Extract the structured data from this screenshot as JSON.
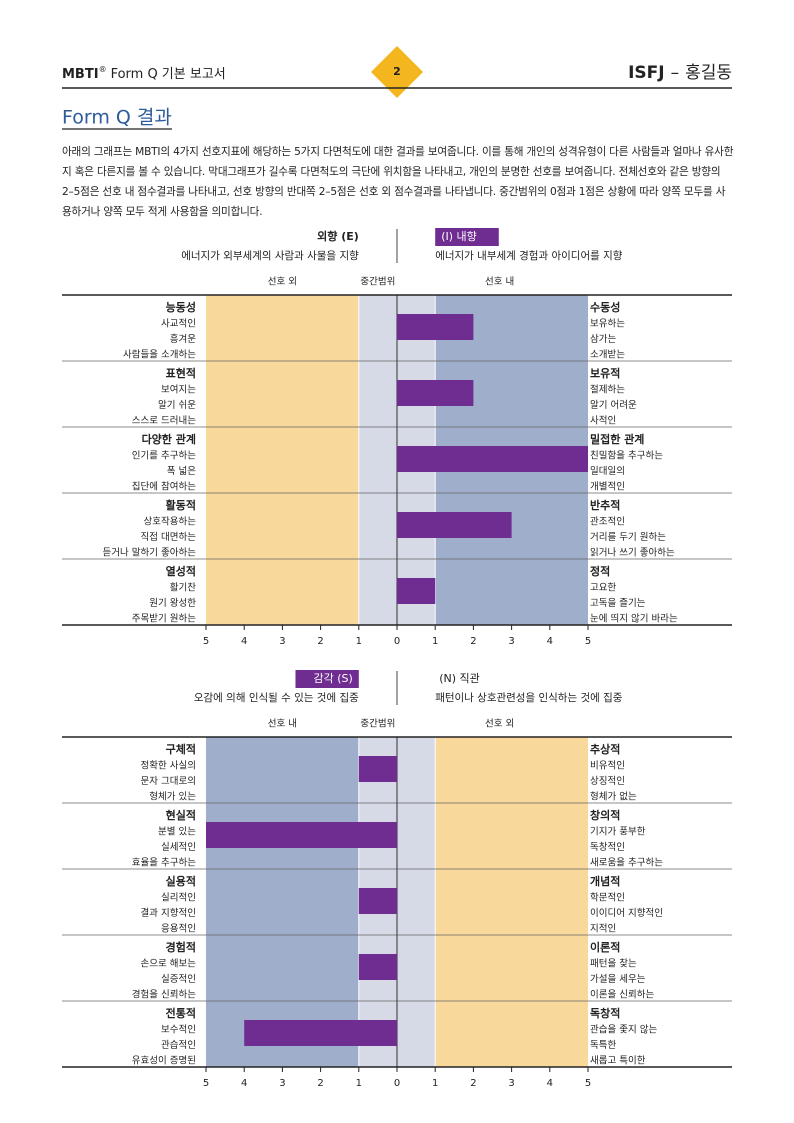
{
  "header": {
    "product": "MBTI",
    "mark": "®",
    "report": "Form Q 기본 보고서",
    "page": "2",
    "type_code": "ISFJ",
    "dash": "–",
    "name": "홍길동"
  },
  "title": "Form Q 결과",
  "intro": "아래의 그래프는 MBTI의 4가지 선호지표에 해당하는 5가지 다면척도에 대한 결과를 보여줍니다. 이를 통해 개인의 성격유형이 다른 사람들과 얼마나 유사한지 혹은 다른지를 볼 수 있습니다. 막대그래프가 길수록 다면척도의 극단에 위치함을 나타내고, 개인의 분명한 선호를 보여줍니다. 전체선호와 같은 방향의 2–5점은 선호 내 점수결과를 나타내고, 선호 방향의 반대쪽 2–5점은 선호 외 점수결과를 나타냅니다. 중간범위의 0점과 1점은 상황에 따라 양쪽 모두를 사용하거나 양쪽 모두 적게 사용함을 의미합니다.",
  "chart_data": [
    {
      "type": "diverging-bar",
      "left_pole": {
        "label": "외향 (E)",
        "description": "에너지가 외부세계의 사람과 사물을 지향"
      },
      "right_pole": {
        "label": "(I) 내향",
        "description": "에너지가 내부세계 경험과 아이디어를 지향"
      },
      "preferred": "right",
      "zone_labels": {
        "left": "선호 외",
        "middle": "중간범위",
        "right": "선호 내"
      },
      "middle_range": [
        -1,
        1
      ],
      "rows": [
        {
          "left_name": "능동성",
          "left_traits": [
            "사교적인",
            "흥겨운",
            "사람들을 소개하는"
          ],
          "right_name": "수동성",
          "right_traits": [
            "보유하는",
            "삼가는",
            "소개받는"
          ]
        },
        {
          "left_name": "표현적",
          "left_traits": [
            "보여지는",
            "알기 쉬운",
            "스스로 드러내는"
          ],
          "right_name": "보유적",
          "right_traits": [
            "절제하는",
            "알기 어려운",
            "사적인"
          ]
        },
        {
          "left_name": "다양한 관계",
          "left_traits": [
            "인기를 추구하는",
            "폭 넓은",
            "집단에 참여하는"
          ],
          "right_name": "밀접한 관계",
          "right_traits": [
            "친밀함을 추구하는",
            "일대일의",
            "개별적인"
          ]
        },
        {
          "left_name": "활동적",
          "left_traits": [
            "상호작용하는",
            "직접 대면하는",
            "듣거나 말하기 좋아하는"
          ],
          "right_name": "반추적",
          "right_traits": [
            "관조적인",
            "거리를 두기 원하는",
            "읽거나 쓰기 좋아하는"
          ]
        },
        {
          "left_name": "열성적",
          "left_traits": [
            "활기찬",
            "원기 왕성한",
            "주목받기 원하는"
          ],
          "right_name": "정적",
          "right_traits": [
            "고요한",
            "고독을 즐기는",
            "눈에 띄지 않기 바라는"
          ]
        }
      ],
      "values": [
        2,
        2,
        5,
        3,
        1
      ],
      "color": "#6f2c91",
      "xlim": [
        -5,
        5
      ],
      "xticks": [
        {
          "value": -5,
          "label": "5"
        },
        {
          "value": -4,
          "label": "4"
        },
        {
          "value": -3,
          "label": "3"
        },
        {
          "value": -2,
          "label": "2"
        },
        {
          "value": -1,
          "label": "1"
        },
        0,
        1,
        2,
        3,
        4,
        5
      ]
    },
    {
      "type": "diverging-bar",
      "left_pole": {
        "label": "감각 (S)",
        "description": "오감에 의해 인식될 수 있는 것에 집중"
      },
      "right_pole": {
        "label": "(N) 직관",
        "description": "패턴이나 상호관련성을 인식하는 것에 집중"
      },
      "preferred": "left",
      "zone_labels": {
        "left": "선호 내",
        "middle": "중간범위",
        "right": "선호 외"
      },
      "middle_range": [
        -1,
        1
      ],
      "rows": [
        {
          "left_name": "구체적",
          "left_traits": [
            "정확한 사실의",
            "문자 그대로의",
            "형체가 있는"
          ],
          "right_name": "추상적",
          "right_traits": [
            "비유적인",
            "상징적인",
            "형체가 없는"
          ]
        },
        {
          "left_name": "현실적",
          "left_traits": [
            "분별 있는",
            "실세적인",
            "효율을 추구하는"
          ],
          "right_name": "창의적",
          "right_traits": [
            "기지가 풍부한",
            "독창적인",
            "새로움을 추구하는"
          ]
        },
        {
          "left_name": "실용적",
          "left_traits": [
            "실리적인",
            "결과 지향적인",
            "응용적인"
          ],
          "right_name": "개념적",
          "right_traits": [
            "학문적인",
            "이이디어 지향적인",
            "지적인"
          ]
        },
        {
          "left_name": "경험적",
          "left_traits": [
            "손으로 해보는",
            "실증적인",
            "경험을 신뢰하는"
          ],
          "right_name": "이론적",
          "right_traits": [
            "패턴을 찾는",
            "가설을 세우는",
            "이론을 신뢰하는"
          ]
        },
        {
          "left_name": "전통적",
          "left_traits": [
            "보수적인",
            "관습적인",
            "유효성이 증명된"
          ],
          "right_name": "독창적",
          "right_traits": [
            "관습을 좇지 않는",
            "독특한",
            "새롭고 특이한"
          ]
        }
      ],
      "values": [
        -1,
        -5,
        -1,
        -1,
        -4
      ],
      "color": "#6f2c91",
      "xlim": [
        -5,
        5
      ],
      "xticks": [
        {
          "value": -5,
          "label": "5"
        },
        {
          "value": -4,
          "label": "4"
        },
        {
          "value": -3,
          "label": "3"
        },
        {
          "value": -2,
          "label": "2"
        },
        {
          "value": -1,
          "label": "1"
        },
        0,
        1,
        2,
        3,
        4,
        5
      ]
    }
  ]
}
